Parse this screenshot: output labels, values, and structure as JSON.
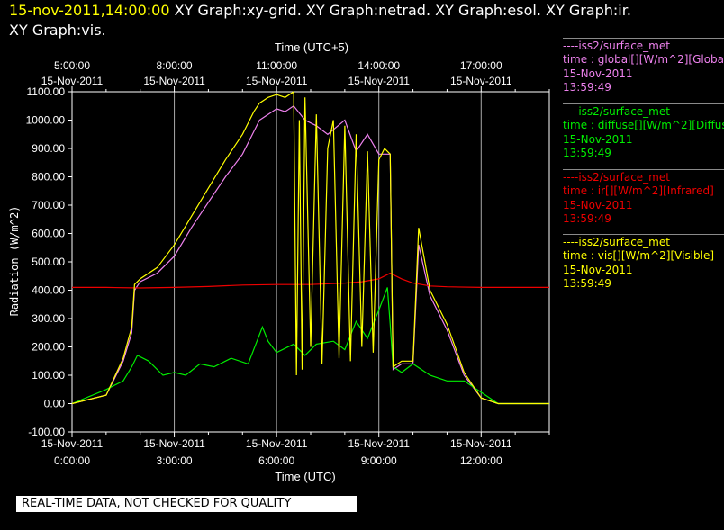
{
  "header": {
    "timestamp": "15-nov-2011,14:00:00",
    "graphs_line1": "XY Graph:xy-grid.  XY Graph:netrad.  XY Graph:esol.  XY Graph:ir.",
    "graphs_line2": "XY Graph:vis."
  },
  "legend": [
    {
      "source": "----iss2/surface_met",
      "desc": "time : global[][W/m^2][Global]",
      "date": "15-Nov-2011",
      "time": "13:59:49",
      "color": "#ee82ee"
    },
    {
      "source": "----iss2/surface_met",
      "desc": "time : diffuse[][W/m^2][Diffuse]",
      "date": "15-Nov-2011",
      "time": "13:59:49",
      "color": "#00ee00"
    },
    {
      "source": "----iss2/surface_met",
      "desc": "time : ir[][W/m^2][Infrared]",
      "date": "15-Nov-2011",
      "time": "13:59:49",
      "color": "#ee0000"
    },
    {
      "source": "----iss2/surface_met",
      "desc": "time : vis[][W/m^2][Visible]",
      "date": "15-Nov-2011",
      "time": "13:59:49",
      "color": "#ffff00"
    }
  ],
  "notice": "REAL-TIME DATA, NOT CHECKED FOR QUALITY",
  "chart_data": {
    "type": "line",
    "ylabel": "Radiation (W/m^2)",
    "xlabel_bottom": "Time (UTC)",
    "xlabel_top": "Time (UTC+5)",
    "ylim": [
      -100,
      1100
    ],
    "xlim_hours_utc": [
      "0:00:00",
      "14:00:00"
    ],
    "yticks": [
      "-100.00",
      "0.00",
      "100.00",
      "200.00",
      "300.00",
      "400.00",
      "500.00",
      "600.00",
      "700.00",
      "800.00",
      "900.00",
      "1000.00",
      "1100.00"
    ],
    "xticks_bottom": [
      {
        "date": "15-Nov-2011",
        "time": "0:00:00"
      },
      {
        "date": "15-Nov-2011",
        "time": "3:00:00"
      },
      {
        "date": "15-Nov-2011",
        "time": "6:00:00"
      },
      {
        "date": "15-Nov-2011",
        "time": "9:00:00"
      },
      {
        "date": "15-Nov-2011",
        "time": "12:00:00"
      }
    ],
    "xticks_top": [
      {
        "time": "5:00:00",
        "date": "15-Nov-2011"
      },
      {
        "time": "8:00:00",
        "date": "15-Nov-2011"
      },
      {
        "time": "11:00:00",
        "date": "15-Nov-2011"
      },
      {
        "time": "14:00:00",
        "date": "15-Nov-2011"
      },
      {
        "time": "17:00:00",
        "date": "15-Nov-2011"
      }
    ],
    "grid_x_hours": [
      3,
      6,
      9,
      12
    ],
    "series": [
      {
        "name": "global",
        "color": "#ee82ee",
        "x": [
          "0:00",
          "1:00",
          "1:30",
          "1:45",
          "1:50",
          "2:00",
          "2:30",
          "3:00",
          "3:30",
          "4:00",
          "4:30",
          "5:00",
          "5:20",
          "5:30",
          "5:45",
          "6:00",
          "6:15",
          "6:30",
          "6:50",
          "7:10",
          "7:30",
          "8:00",
          "8:20",
          "8:40",
          "9:00",
          "9:20",
          "9:25",
          "9:40",
          "10:00",
          "10:10",
          "10:30",
          "11:00",
          "11:30",
          "12:00",
          "12:30",
          "13:00",
          "14:00"
        ],
        "y": [
          0,
          30,
          150,
          250,
          400,
          430,
          460,
          520,
          620,
          710,
          800,
          880,
          960,
          1000,
          1020,
          1040,
          1030,
          1050,
          1000,
          980,
          950,
          1000,
          890,
          950,
          880,
          880,
          120,
          140,
          140,
          560,
          380,
          260,
          100,
          20,
          0,
          0,
          0
        ]
      },
      {
        "name": "diffuse",
        "color": "#00ee00",
        "x": [
          "0:00",
          "1:00",
          "1:30",
          "1:45",
          "1:55",
          "2:15",
          "2:40",
          "3:00",
          "3:20",
          "3:45",
          "4:10",
          "4:40",
          "5:10",
          "5:35",
          "5:45",
          "6:00",
          "6:30",
          "6:50",
          "7:10",
          "7:40",
          "8:00",
          "8:20",
          "8:40",
          "9:00",
          "9:15",
          "9:20",
          "9:25",
          "9:40",
          "10:00",
          "10:30",
          "11:00",
          "11:30",
          "12:00",
          "12:30",
          "13:00",
          "14:00"
        ],
        "y": [
          0,
          50,
          80,
          130,
          170,
          150,
          100,
          110,
          100,
          140,
          130,
          160,
          140,
          270,
          220,
          180,
          210,
          170,
          210,
          220,
          190,
          290,
          230,
          330,
          410,
          280,
          130,
          110,
          140,
          100,
          80,
          80,
          40,
          0,
          0,
          0
        ]
      },
      {
        "name": "ir",
        "color": "#ee0000",
        "x": [
          "0:00",
          "1:00",
          "2:00",
          "3:00",
          "4:00",
          "5:00",
          "6:00",
          "7:00",
          "8:00",
          "8:30",
          "9:00",
          "9:20",
          "9:40",
          "10:00",
          "10:30",
          "11:00",
          "12:00",
          "13:00",
          "14:00"
        ],
        "y": [
          410,
          410,
          408,
          410,
          413,
          418,
          420,
          420,
          425,
          430,
          440,
          460,
          440,
          425,
          415,
          412,
          410,
          410,
          410
        ]
      },
      {
        "name": "vis",
        "color": "#ffff00",
        "x": [
          "0:00",
          "1:00",
          "1:30",
          "1:45",
          "1:50",
          "2:00",
          "2:30",
          "3:00",
          "3:30",
          "4:00",
          "4:30",
          "5:00",
          "5:20",
          "5:30",
          "5:45",
          "6:00",
          "6:15",
          "6:30",
          "6:35",
          "6:40",
          "6:45",
          "6:50",
          "7:00",
          "7:10",
          "7:20",
          "7:30",
          "7:40",
          "7:50",
          "8:00",
          "8:10",
          "8:20",
          "8:30",
          "8:40",
          "8:50",
          "9:00",
          "9:10",
          "9:20",
          "9:25",
          "9:40",
          "10:00",
          "10:10",
          "10:30",
          "11:00",
          "11:30",
          "12:00",
          "12:30",
          "13:00",
          "14:00"
        ],
        "y": [
          0,
          30,
          160,
          270,
          420,
          440,
          480,
          560,
          660,
          760,
          860,
          950,
          1030,
          1060,
          1080,
          1090,
          1080,
          1100,
          100,
          1000,
          120,
          1080,
          200,
          1020,
          140,
          900,
          1000,
          160,
          980,
          150,
          950,
          200,
          890,
          180,
          860,
          900,
          880,
          130,
          150,
          150,
          620,
          400,
          280,
          110,
          20,
          0,
          0,
          0
        ]
      }
    ]
  }
}
